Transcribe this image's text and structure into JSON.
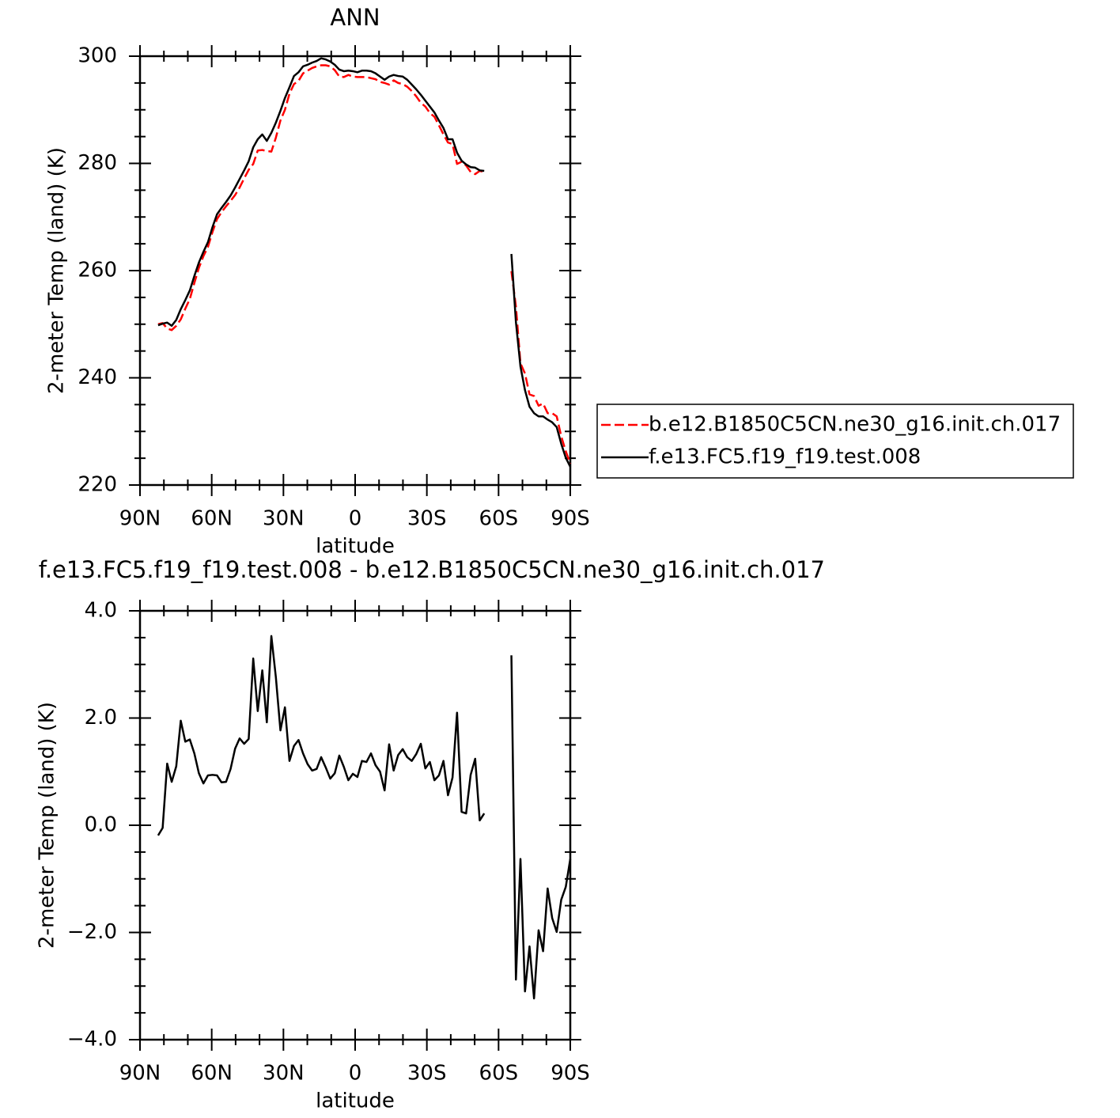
{
  "chart_data": [
    {
      "type": "line",
      "title": "ANN",
      "xlabel": "latitude",
      "ylabel": "2-meter Temp (land) (K)",
      "x": [
        82.42,
        80.53,
        78.63,
        76.74,
        74.84,
        72.95,
        71.05,
        69.16,
        67.26,
        65.37,
        63.47,
        61.58,
        59.68,
        57.79,
        55.89,
        54.0,
        52.11,
        50.21,
        48.32,
        46.42,
        44.53,
        42.63,
        40.74,
        38.84,
        36.95,
        35.05,
        33.16,
        31.26,
        29.37,
        27.47,
        25.58,
        23.68,
        21.79,
        19.89,
        18.0,
        16.11,
        14.21,
        12.32,
        10.42,
        8.53,
        6.63,
        4.74,
        2.84,
        0.95,
        -0.95,
        -2.84,
        -4.74,
        -6.63,
        -8.53,
        -10.42,
        -12.32,
        -14.21,
        -16.11,
        -18.0,
        -19.89,
        -21.79,
        -23.68,
        -25.58,
        -27.47,
        -29.37,
        -31.26,
        -33.16,
        -35.05,
        -36.95,
        -38.84,
        -40.74,
        -42.63,
        -44.53,
        -46.42,
        -48.32,
        -50.21,
        -52.11,
        -54.0,
        -55.89,
        -57.79,
        -59.68,
        -61.58,
        -63.47,
        -65.37,
        -67.26,
        -69.16,
        -71.05,
        -72.95,
        -74.84,
        -76.74,
        -78.63,
        -80.53,
        -82.42,
        -84.32,
        -86.21,
        -88.11,
        -90
      ],
      "series": [
        {
          "name": "b.e12.B1850C5CN.ne30_g16.init.ch.017",
          "color": "#ff0000",
          "line_style": "dashed",
          "values": [
            250.0,
            250.2,
            249.2,
            248.9,
            249.7,
            250.9,
            252.9,
            254.7,
            257.7,
            260.5,
            262.7,
            264.4,
            267.2,
            269.6,
            270.9,
            272.0,
            273.0,
            274.1,
            275.5,
            277.2,
            278.8,
            279.9,
            282.4,
            282.5,
            282.3,
            282.2,
            284.8,
            288.0,
            290.0,
            293.0,
            294.8,
            295.4,
            296.8,
            297.3,
            297.8,
            298.1,
            298.3,
            298.3,
            298.1,
            297.4,
            296.2,
            296.1,
            296.5,
            296.2,
            296.1,
            296.1,
            296.1,
            295.9,
            295.7,
            295.2,
            295.0,
            294.7,
            295.5,
            295.0,
            294.8,
            294.3,
            293.5,
            292.5,
            291.3,
            290.6,
            289.4,
            288.7,
            287.1,
            285.4,
            283.9,
            283.6,
            279.9,
            280.3,
            279.6,
            278.4,
            278.0,
            278.6,
            278.4,
            null,
            null,
            null,
            null,
            null,
            259.9,
            253.3,
            242.7,
            240.8,
            236.9,
            236.6,
            234.8,
            235.2,
            233.4,
            233.4,
            232.8,
            229.1,
            226.3,
            224.0
          ]
        },
        {
          "name": "f.e13.FC5.f19_f19.test.008",
          "color": "#000000",
          "line_style": "solid",
          "values": [
            249.8,
            250.1,
            250.3,
            249.7,
            250.8,
            252.8,
            254.5,
            256.3,
            259.0,
            261.5,
            263.5,
            265.3,
            268.1,
            270.5,
            271.7,
            272.8,
            274.0,
            275.5,
            277.1,
            278.7,
            280.4,
            283.0,
            284.5,
            285.4,
            284.2,
            285.7,
            287.6,
            289.8,
            292.2,
            294.2,
            296.3,
            297.0,
            298.1,
            298.4,
            298.8,
            299.1,
            299.6,
            299.4,
            299.0,
            298.4,
            297.5,
            297.2,
            297.3,
            297.2,
            297.0,
            297.3,
            297.3,
            297.2,
            296.8,
            296.2,
            295.6,
            296.2,
            296.5,
            296.3,
            296.2,
            295.6,
            294.7,
            293.8,
            292.8,
            291.7,
            290.6,
            289.5,
            288.0,
            286.6,
            284.5,
            284.5,
            282.0,
            280.5,
            279.8,
            279.3,
            279.2,
            278.7,
            278.6,
            null,
            null,
            null,
            null,
            null,
            263.1,
            250.4,
            242.1,
            237.7,
            234.6,
            233.4,
            232.8,
            232.8,
            232.2,
            231.7,
            230.8,
            227.7,
            225.1,
            223.4
          ]
        }
      ],
      "xlim": [
        90,
        -90
      ],
      "xticks": [
        {
          "value": 90,
          "label": "90N"
        },
        {
          "value": 60,
          "label": "60N"
        },
        {
          "value": 30,
          "label": "30N"
        },
        0,
        {
          "value": -30,
          "label": "30S"
        },
        {
          "value": -60,
          "label": "60S"
        },
        {
          "value": -90,
          "label": "90S"
        }
      ],
      "xminorticks": [
        80,
        70,
        50,
        40,
        20,
        10,
        -10,
        -20,
        -40,
        -50,
        -70,
        -80
      ],
      "ylim": [
        220,
        300
      ],
      "yticks": [
        220,
        240,
        260,
        280,
        300
      ],
      "yminorticks": [
        225,
        230,
        235,
        245,
        250,
        255,
        265,
        270,
        275,
        285,
        290,
        295
      ],
      "legend": "right"
    },
    {
      "type": "line",
      "title": "f.e13.FC5.f19_f19.test.008 - b.e12.B1850C5CN.ne30_g16.init.ch.017",
      "xlabel": "latitude",
      "ylabel": "2-meter Temp (land) (K)",
      "x": [
        82.42,
        80.53,
        78.63,
        76.74,
        74.84,
        72.95,
        71.05,
        69.16,
        67.26,
        65.37,
        63.47,
        61.58,
        59.68,
        57.79,
        55.89,
        54.0,
        52.11,
        50.21,
        48.32,
        46.42,
        44.53,
        42.63,
        40.74,
        38.84,
        36.95,
        35.05,
        33.16,
        31.26,
        29.37,
        27.47,
        25.58,
        23.68,
        21.79,
        19.89,
        18.0,
        16.11,
        14.21,
        12.32,
        10.42,
        8.53,
        6.63,
        4.74,
        2.84,
        0.95,
        -0.95,
        -2.84,
        -4.74,
        -6.63,
        -8.53,
        -10.42,
        -12.32,
        -14.21,
        -16.11,
        -18.0,
        -19.89,
        -21.79,
        -23.68,
        -25.58,
        -27.47,
        -29.37,
        -31.26,
        -33.16,
        -35.05,
        -36.95,
        -38.84,
        -40.74,
        -42.63,
        -44.53,
        -46.42,
        -48.32,
        -50.21,
        -52.11,
        -54.0,
        -55.89,
        -57.79,
        -59.68,
        -61.58,
        -63.47,
        -65.37,
        -67.26,
        -69.16,
        -71.05,
        -72.95,
        -74.84,
        -76.74,
        -78.63,
        -80.53,
        -82.42,
        -84.32,
        -86.21,
        -88.11,
        -90
      ],
      "series": [
        {
          "color": "#000000",
          "line_style": "solid",
          "values": [
            -0.19,
            -0.05,
            1.15,
            0.81,
            1.1,
            1.95,
            1.56,
            1.6,
            1.34,
            0.97,
            0.78,
            0.93,
            0.94,
            0.93,
            0.8,
            0.81,
            1.05,
            1.43,
            1.62,
            1.52,
            1.61,
            3.11,
            2.13,
            2.89,
            1.92,
            3.53,
            2.76,
            1.77,
            2.2,
            1.2,
            1.48,
            1.59,
            1.34,
            1.14,
            1.02,
            1.05,
            1.27,
            1.08,
            0.87,
            0.97,
            1.3,
            1.09,
            0.84,
            0.96,
            0.9,
            1.2,
            1.18,
            1.34,
            1.12,
            1.0,
            0.65,
            1.51,
            1.02,
            1.31,
            1.42,
            1.27,
            1.2,
            1.33,
            1.52,
            1.06,
            1.18,
            0.84,
            0.93,
            1.2,
            0.56,
            0.89,
            2.1,
            0.25,
            0.22,
            0.94,
            1.24,
            0.09,
            0.22,
            null,
            null,
            null,
            null,
            null,
            3.17,
            -2.88,
            -0.63,
            -3.1,
            -2.26,
            -3.23,
            -1.96,
            -2.35,
            -1.18,
            -1.73,
            -1.99,
            -1.39,
            -1.15,
            -0.63
          ]
        }
      ],
      "xlim": [
        90,
        -90
      ],
      "xticks": [
        {
          "value": 90,
          "label": "90N"
        },
        {
          "value": 60,
          "label": "60N"
        },
        {
          "value": 30,
          "label": "30N"
        },
        0,
        {
          "value": -30,
          "label": "30S"
        },
        {
          "value": -60,
          "label": "60S"
        },
        {
          "value": -90,
          "label": "90S"
        }
      ],
      "xminorticks": [
        80,
        70,
        50,
        40,
        20,
        10,
        -10,
        -20,
        -40,
        -50,
        -70,
        -80
      ],
      "ylim": [
        -4,
        4
      ],
      "yticks": [
        {
          "value": -4,
          "label": "−4.0"
        },
        {
          "value": -2,
          "label": "−2.0"
        },
        {
          "value": 0,
          "label": "0.0"
        },
        {
          "value": 2,
          "label": "2.0"
        },
        {
          "value": 4,
          "label": "4.0"
        }
      ],
      "yminorticks": [
        3.5,
        3,
        2.5,
        1.5,
        1,
        0.5,
        -0.5,
        -1,
        -1.5,
        -2.5,
        -3,
        -3.5
      ]
    }
  ]
}
